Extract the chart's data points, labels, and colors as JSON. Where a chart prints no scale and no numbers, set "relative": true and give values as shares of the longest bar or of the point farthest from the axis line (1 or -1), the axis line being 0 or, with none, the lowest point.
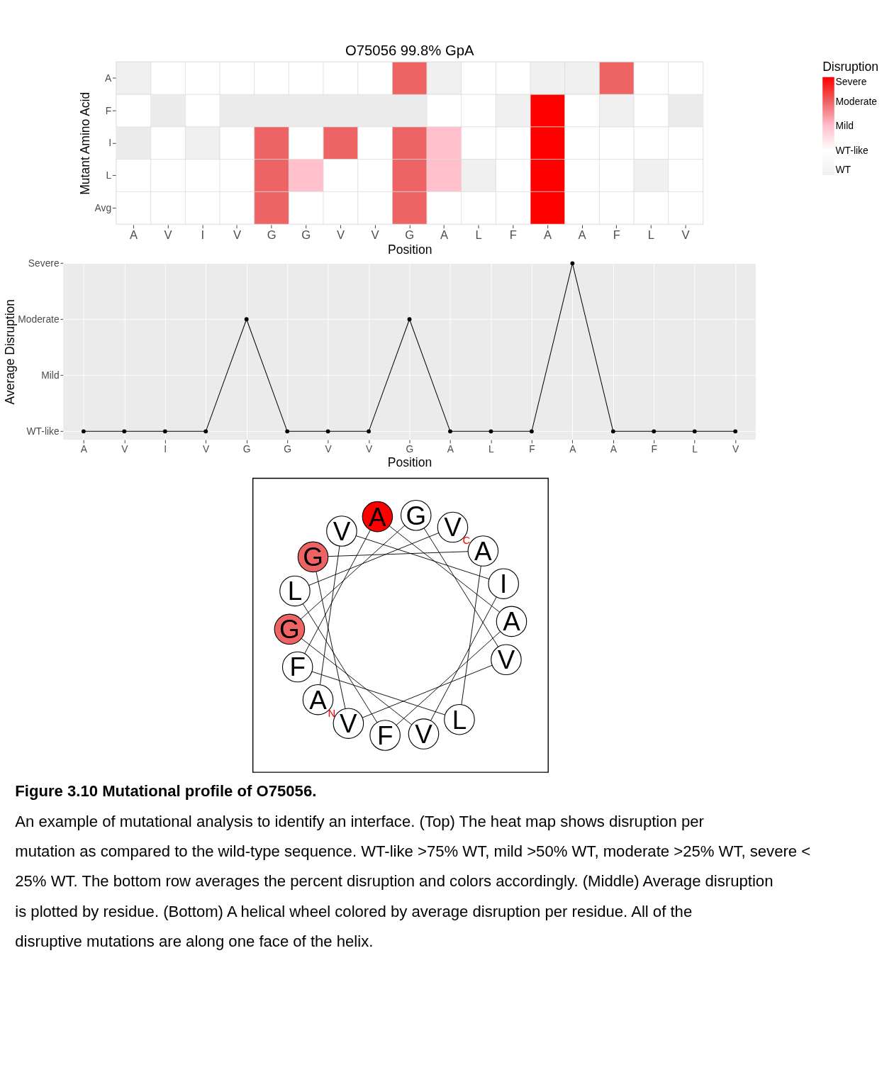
{
  "chart_data": [
    {
      "type": "heatmap",
      "title": "O75056 99.8% GpA",
      "xlabel": "Position",
      "ylabel": "Mutant Amino Acid",
      "legend_title": "Disruption",
      "categories": [
        "A",
        "V",
        "I",
        "V",
        "G",
        "G",
        "V",
        "V",
        "G",
        "A",
        "L",
        "F",
        "A",
        "A",
        "F",
        "L",
        "V"
      ],
      "y_categories": [
        "A",
        "F",
        "I",
        "L",
        "Avg"
      ],
      "cells": [
        [
          0,
          1,
          1,
          1,
          1,
          1,
          1,
          1,
          3,
          0,
          1,
          1,
          0,
          0,
          3,
          1,
          1
        ],
        [
          1,
          null,
          1,
          null,
          null,
          null,
          null,
          null,
          null,
          1,
          1,
          0,
          4,
          1,
          0,
          1,
          null
        ],
        [
          null,
          1,
          0,
          1,
          3,
          1,
          3,
          1,
          3,
          2,
          1,
          1,
          4,
          1,
          1,
          1,
          1
        ],
        [
          1,
          1,
          1,
          1,
          3,
          2,
          1,
          1,
          3,
          2,
          0,
          1,
          4,
          1,
          1,
          0,
          1
        ],
        [
          1,
          1,
          1,
          1,
          3,
          1,
          1,
          1,
          3,
          1,
          1,
          1,
          4,
          1,
          1,
          1,
          1
        ]
      ],
      "clim": [
        0,
        4
      ],
      "cticks": [
        {
          "value": 0,
          "label": "WT"
        },
        {
          "value": 1,
          "label": "WT-like"
        },
        {
          "value": 2,
          "label": "Mild"
        },
        {
          "value": 3,
          "label": "Moderate"
        },
        {
          "value": 4,
          "label": "Severe"
        }
      ],
      "colors": [
        "#f0f0f0",
        "#ffffff",
        "#ffc0cb",
        "#ee6363",
        "#ff0000"
      ]
    },
    {
      "type": "line",
      "xlabel": "Position",
      "ylabel": "Average Disruption",
      "grid": true,
      "marker": "circle",
      "categories": [
        "A",
        "V",
        "I",
        "V",
        "G",
        "G",
        "V",
        "V",
        "G",
        "A",
        "L",
        "F",
        "A",
        "A",
        "F",
        "L",
        "V"
      ],
      "series": [
        {
          "color": "#000000",
          "values": [
            0,
            0,
            0,
            0,
            0.667,
            0,
            0,
            0,
            0.667,
            0,
            0,
            0,
            1,
            0,
            0,
            0,
            0
          ]
        }
      ],
      "relative": true,
      "annotations": [
        "WT-like",
        "Mild",
        "Moderate",
        "Severe"
      ]
    },
    {
      "type": "other",
      "categories": [
        "A",
        "V",
        "I",
        "V",
        "G",
        "G",
        "V",
        "V",
        "G",
        "A",
        "L",
        "F",
        "A",
        "A",
        "F",
        "L",
        "V"
      ],
      "colors": [
        "#ffffff",
        "#ffffff",
        "#ffffff",
        "#ffffff",
        "#ee6363",
        "#ffffff",
        "#ffffff",
        "#ffffff",
        "#ee6363",
        "#ffffff",
        "#ffffff",
        "#ffffff",
        "#ff0000",
        "#ffffff",
        "#ffffff",
        "#ffffff",
        "#ffffff"
      ],
      "annotations": [
        "N",
        "C",
        "Figure 3.10 Mutational profile of O75056.",
        "An example of mutational analysis to identify an interface. (Top) The heat map shows disruption per mutation as compared to the wild-type sequence. WT-like >75% WT, mild >50% WT, moderate >25% WT, severe < 25% WT. The bottom row averages the percent disruption and colors accordingly. (Middle) Average disruption is plotted by residue. (Bottom) A helical wheel colored by average disruption per residue. All of the disruptive mutations are along one face of the helix."
      ]
    }
  ]
}
